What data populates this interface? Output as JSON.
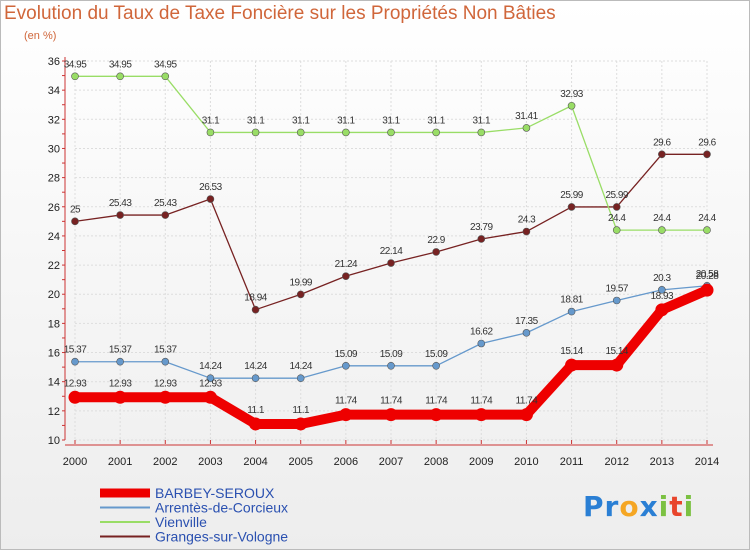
{
  "chart_data": {
    "type": "line",
    "title": "Evolution du Taux de Taxe Foncière sur les Propriétés Non Bâties",
    "subtitle": "(en %)",
    "categories": [
      "2000",
      "2001",
      "2002",
      "2003",
      "2004",
      "2005",
      "2006",
      "2007",
      "2008",
      "2009",
      "2010",
      "2011",
      "2012",
      "2013",
      "2014"
    ],
    "ylim": [
      10,
      36
    ],
    "yticks": [
      10,
      12,
      14,
      16,
      18,
      20,
      22,
      24,
      26,
      28,
      30,
      32,
      34,
      36
    ],
    "series": [
      {
        "name": "BARBEY-SEROUX",
        "color": "#ee0000",
        "values": [
          12.93,
          12.93,
          12.93,
          12.93,
          11.1,
          11.1,
          11.74,
          11.74,
          11.74,
          11.74,
          11.74,
          15.14,
          15.14,
          18.93,
          20.28
        ],
        "labels": [
          "12.93",
          "12.93",
          "12.93",
          "12.93",
          "11.1",
          "11.1",
          "11.74",
          "11.74",
          "11.74",
          "11.74",
          "11.74",
          "15.14",
          "15.14",
          "18.93",
          "20.28"
        ]
      },
      {
        "name": "Arrentès-de-Corcieux",
        "color": "#6699cc",
        "values": [
          15.37,
          15.37,
          15.37,
          14.24,
          14.24,
          14.24,
          15.09,
          15.09,
          15.09,
          16.62,
          17.35,
          18.81,
          19.57,
          20.3,
          20.58
        ],
        "labels": [
          "15.37",
          "15.37",
          "15.37",
          "14.24",
          "14.24",
          "14.24",
          "15.09",
          "15.09",
          "15.09",
          "16.62",
          "17.35",
          "18.81",
          "19.57",
          "20.3",
          "20.58"
        ]
      },
      {
        "name": "Vienville",
        "color": "#99dd66",
        "values": [
          34.95,
          34.95,
          34.95,
          31.1,
          31.1,
          31.1,
          31.1,
          31.1,
          31.1,
          31.1,
          31.41,
          32.93,
          24.4,
          24.4,
          24.4
        ],
        "labels": [
          "34.95",
          "34.95",
          "34.95",
          "31.1",
          "31.1",
          "31.1",
          "31.1",
          "31.1",
          "31.1",
          "31.1",
          "31.41",
          "32.93",
          "24.4",
          "24.4",
          "24.4"
        ]
      },
      {
        "name": "Granges-sur-Vologne",
        "color": "#772222",
        "values": [
          25,
          25.43,
          25.43,
          26.53,
          18.94,
          19.99,
          21.24,
          22.14,
          22.9,
          23.79,
          24.3,
          25.99,
          25.99,
          29.6,
          29.6
        ],
        "labels": [
          "25",
          "25.43",
          "25.43",
          "26.53",
          "18.94",
          "19.99",
          "21.24",
          "22.14",
          "22.9",
          "23.79",
          "24.3",
          "25.99",
          "25.99",
          "29.6",
          "29.6"
        ]
      }
    ]
  },
  "logo": {
    "letters": [
      "P",
      "r",
      "o",
      "x",
      "i",
      "t",
      "i"
    ],
    "colors": [
      "#2a7fd4",
      "#2a7fd4",
      "#f5a623",
      "#2a7fd4",
      "#7bc142",
      "#e8452c",
      "#7bc142"
    ]
  }
}
